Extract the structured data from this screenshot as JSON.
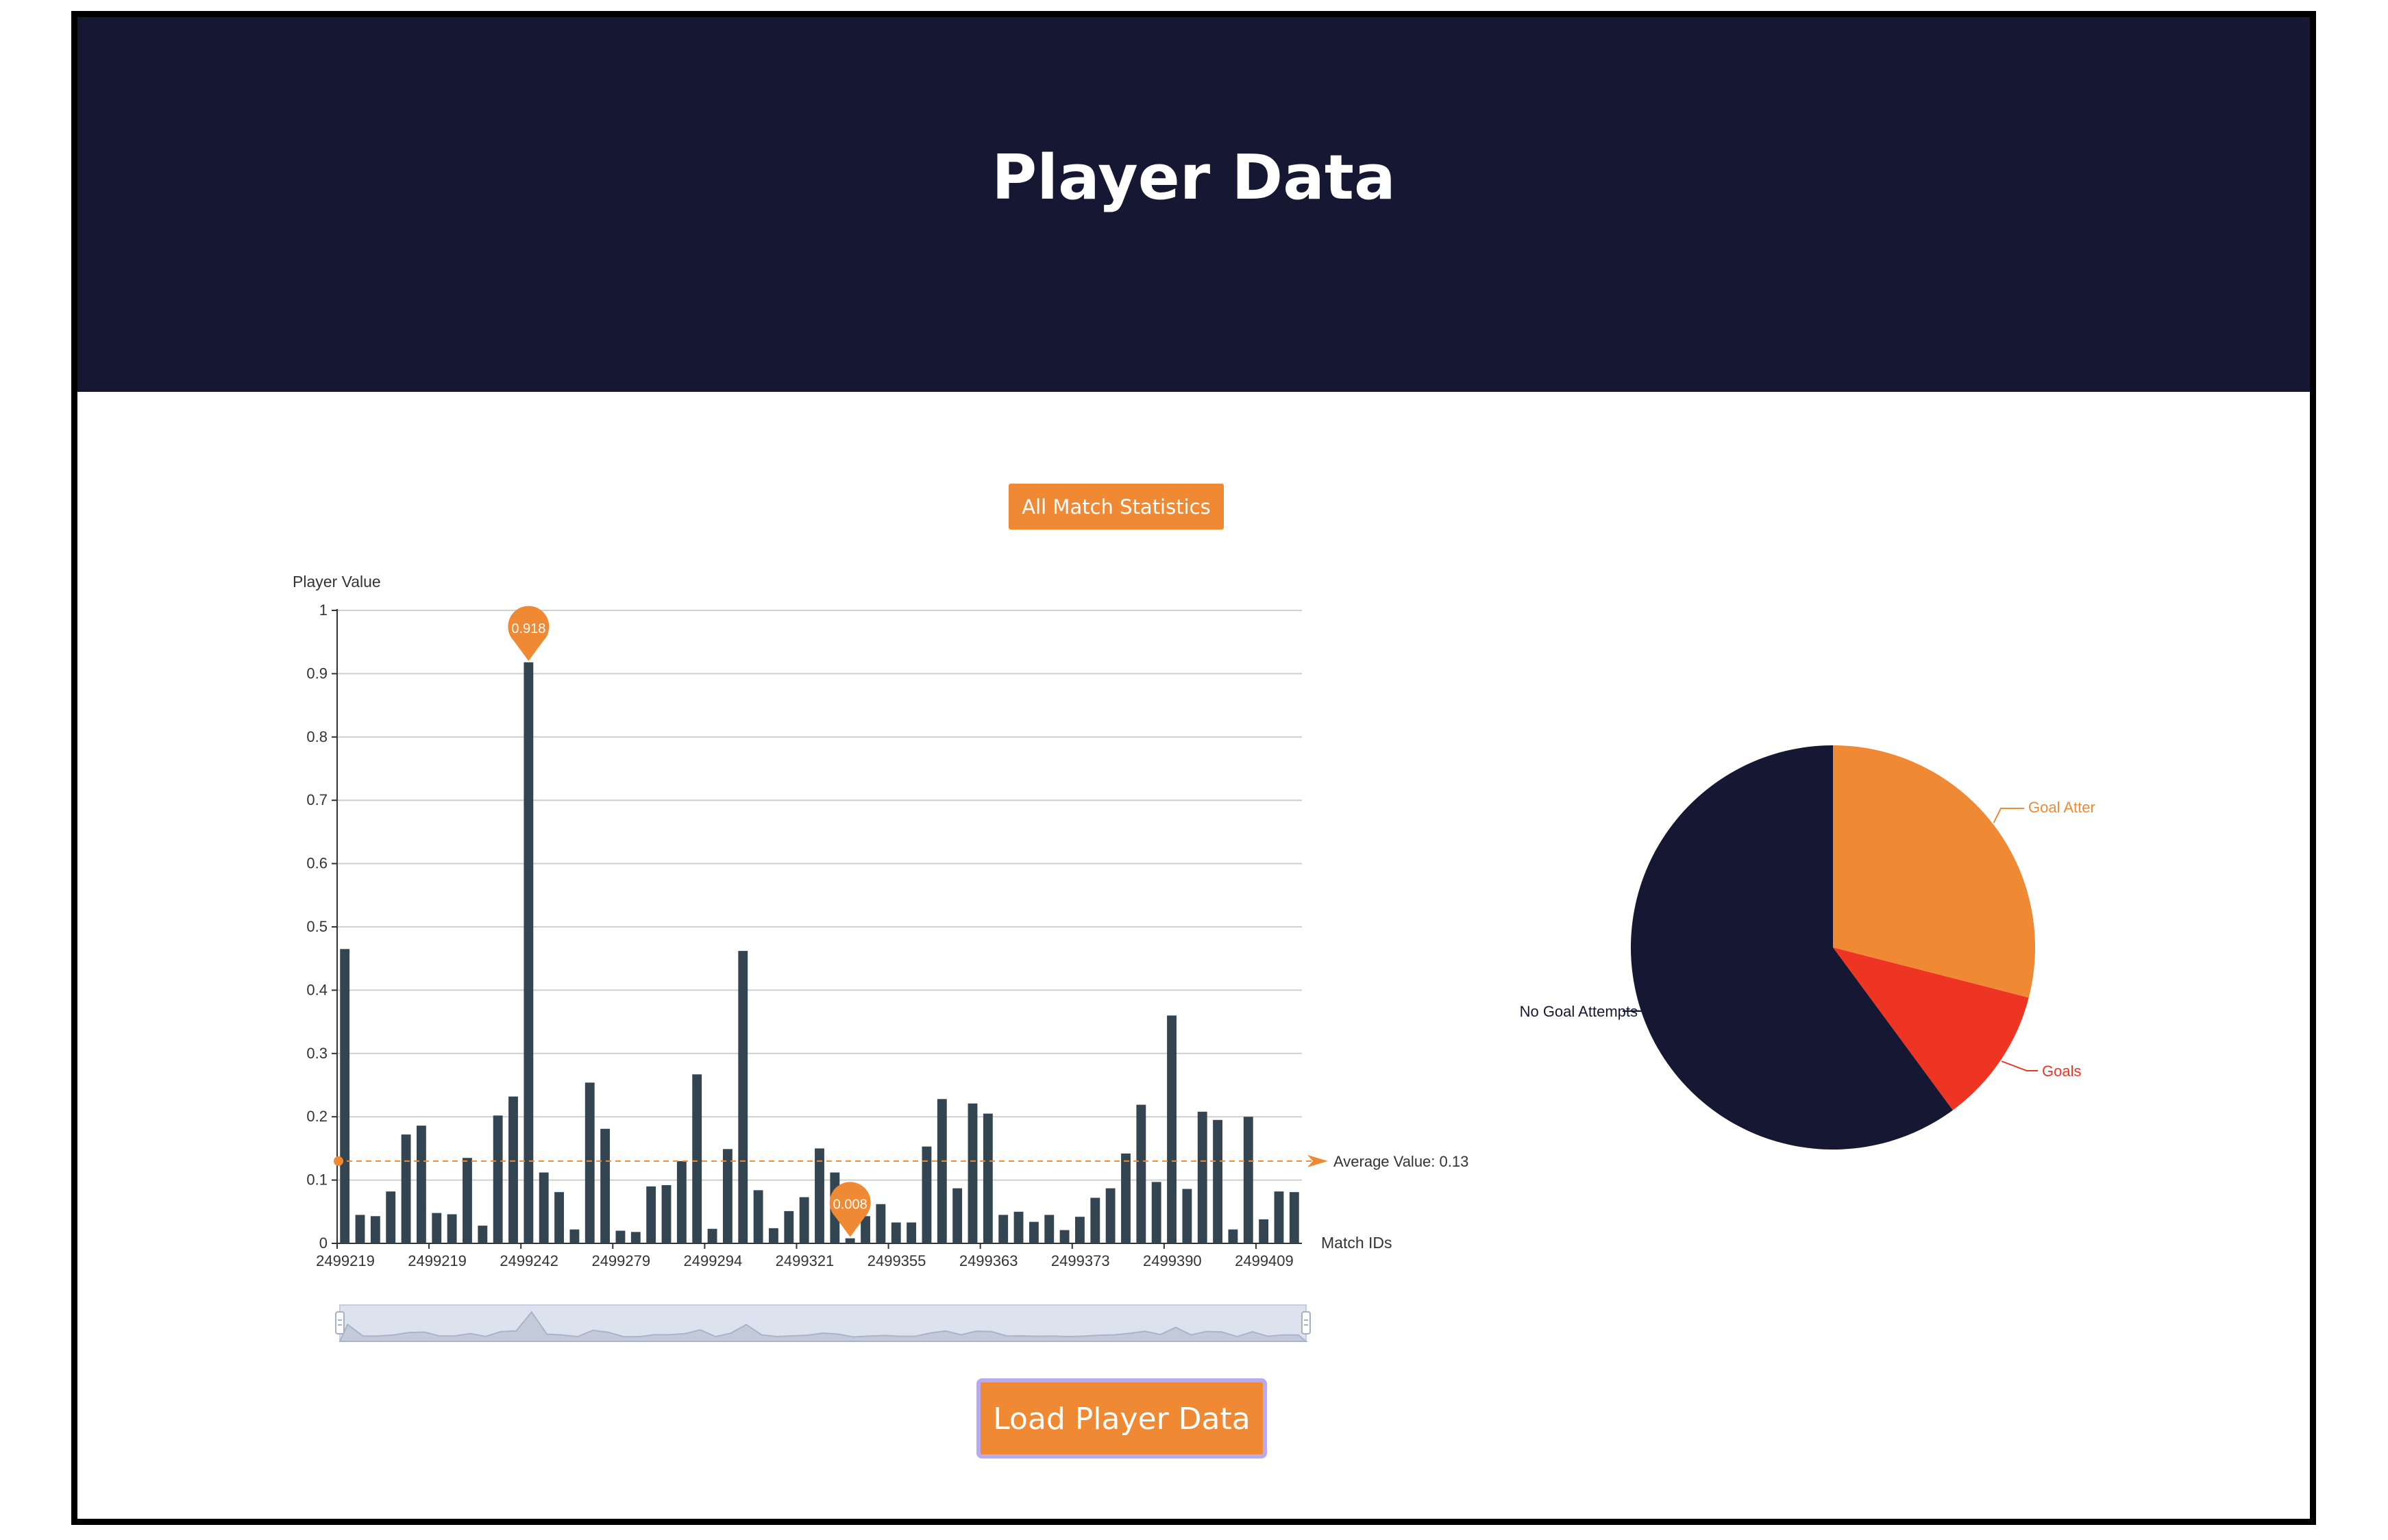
{
  "header": {
    "title": "Player Data"
  },
  "buttons": {
    "all_match_stats": "All Match Statistics",
    "load_player_data": "Load Player Data"
  },
  "colors": {
    "header_bg": "#161733",
    "accent": "#f08933",
    "bar": "#344552",
    "pie_goal_attempts": "#f08933",
    "pie_goals": "#ee3524",
    "pie_no_goal_attempts": "#161733"
  },
  "chart_data": [
    {
      "type": "bar",
      "ylabel": "Player Value",
      "xlabel": "Match IDs",
      "ylim": [
        0,
        1
      ],
      "yticks": [
        "0",
        "0.1",
        "0.2",
        "0.3",
        "0.4",
        "0.5",
        "0.6",
        "0.7",
        "0.8",
        "0.9",
        "1"
      ],
      "x_tick_labels": [
        "2499219",
        "2499219",
        "2499242",
        "2499279",
        "2499294",
        "2499321",
        "2499355",
        "2499363",
        "2499373",
        "2499390",
        "2499409"
      ],
      "values": [
        0.465,
        0.045,
        0.043,
        0.082,
        0.172,
        0.186,
        0.048,
        0.046,
        0.135,
        0.028,
        0.202,
        0.232,
        0.918,
        0.112,
        0.081,
        0.022,
        0.254,
        0.181,
        0.02,
        0.018,
        0.09,
        0.092,
        0.13,
        0.267,
        0.023,
        0.149,
        0.462,
        0.084,
        0.024,
        0.051,
        0.073,
        0.15,
        0.112,
        0.008,
        0.043,
        0.062,
        0.033,
        0.033,
        0.153,
        0.228,
        0.087,
        0.221,
        0.205,
        0.045,
        0.05,
        0.034,
        0.045,
        0.021,
        0.042,
        0.072,
        0.087,
        0.142,
        0.219,
        0.097,
        0.36,
        0.086,
        0.208,
        0.195,
        0.022,
        0.2,
        0.038,
        0.082,
        0.081
      ],
      "max_marker": "0.918",
      "min_marker": "0.008",
      "average_label": "Average Value: 0.13",
      "average_value": 0.13,
      "grid": true
    },
    {
      "type": "pie",
      "slices": [
        {
          "label": "Goal Atter",
          "value": 0.29
        },
        {
          "label": "Goals",
          "value": 0.109
        },
        {
          "label": "No Goal Attempts",
          "value": 0.601
        }
      ]
    }
  ]
}
